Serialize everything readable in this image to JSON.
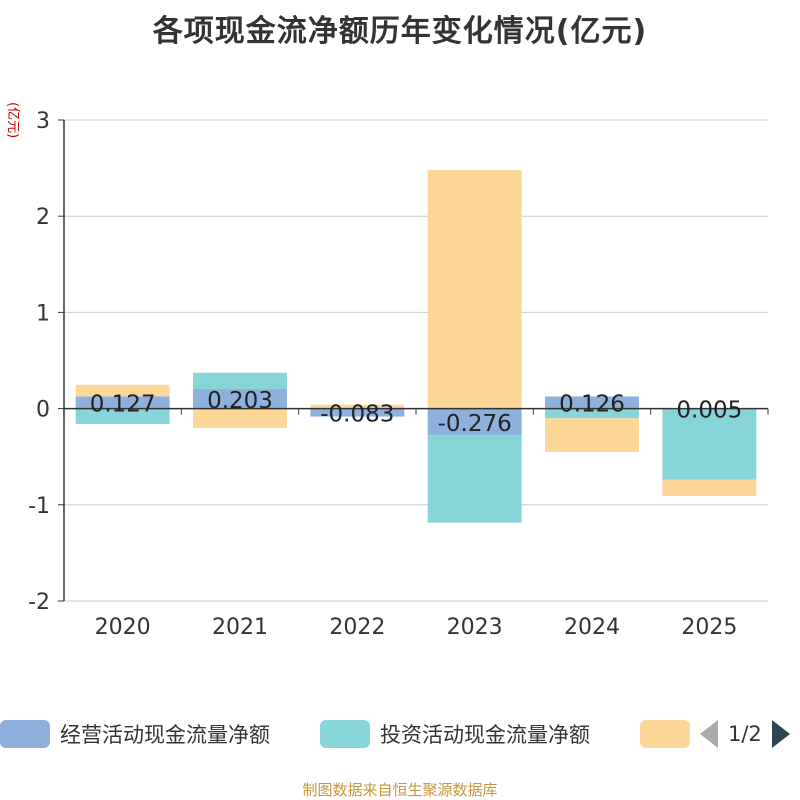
{
  "chart_data": {
    "type": "bar",
    "stacked": true,
    "title": "各项现金流净额历年变化情况(亿元)",
    "ylabel": "(亿元)",
    "xlabel": "",
    "categories": [
      "2020",
      "2021",
      "2022",
      "2023",
      "2024",
      "2025"
    ],
    "ylim": [
      -2,
      3
    ],
    "yticks": [
      3,
      2,
      1,
      0,
      -1,
      -2
    ],
    "grid": true,
    "series": [
      {
        "name": "经营活动现金流量净额",
        "color": "#8eb0dc",
        "values": [
          0.127,
          0.203,
          -0.083,
          -0.276,
          0.126,
          0.005
        ],
        "show_labels": true
      },
      {
        "name": "投资活动现金流量净额",
        "color": "#87d5d9",
        "values": [
          -0.16,
          0.17,
          0.01,
          -0.91,
          -0.1,
          -0.74
        ],
        "show_labels": false
      },
      {
        "name": "",
        "color": "#fdd797",
        "values": [
          0.12,
          -0.2,
          0.03,
          2.48,
          -0.35,
          -0.17
        ],
        "show_labels": false
      }
    ],
    "legend": {
      "position": "bottom",
      "page": "1/2"
    }
  },
  "source": "制图数据来自恒生聚源数据库"
}
